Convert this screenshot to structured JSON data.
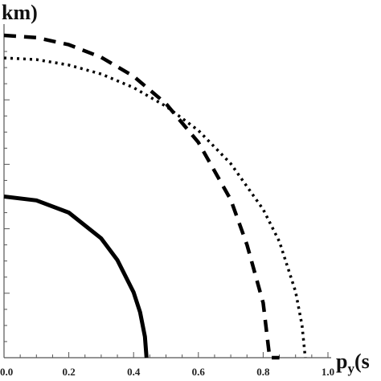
{
  "chart_data": {
    "type": "line",
    "xlabel_main": "p",
    "xlabel_sub": "y",
    "xlabel_tail": "(s",
    "ylabel": "km)",
    "xlim": [
      0,
      1.0
    ],
    "ylim": [
      0,
      1.0
    ],
    "x_ticks": [
      "0.0",
      "0.2",
      "0.4",
      "0.6",
      "0.8",
      "1.0"
    ],
    "grid": false,
    "legend": "none",
    "series": [
      {
        "style": "solid",
        "color": "#000000",
        "x": [
          0.0,
          0.1,
          0.2,
          0.3,
          0.35,
          0.4,
          0.42,
          0.435,
          0.44
        ],
        "y": [
          0.5,
          0.488,
          0.45,
          0.37,
          0.303,
          0.203,
          0.141,
          0.065,
          0.0
        ]
      },
      {
        "style": "dashed",
        "color": "#000000",
        "x": [
          0.0,
          0.1,
          0.2,
          0.3,
          0.4,
          0.5,
          0.6,
          0.7,
          0.75,
          0.8,
          0.82,
          0.84,
          0.85
        ],
        "y": [
          1.0,
          0.993,
          0.971,
          0.932,
          0.873,
          0.788,
          0.668,
          0.49,
          0.35,
          0.17,
          0.0,
          0.0,
          0.0
        ]
      },
      {
        "style": "dotted",
        "color": "#000000",
        "x": [
          0.0,
          0.1,
          0.2,
          0.3,
          0.4,
          0.5,
          0.6,
          0.7,
          0.8,
          0.85,
          0.9,
          0.92,
          0.93
        ],
        "y": [
          0.93,
          0.925,
          0.908,
          0.88,
          0.838,
          0.78,
          0.705,
          0.602,
          0.46,
          0.36,
          0.205,
          0.1,
          0.0
        ]
      }
    ]
  }
}
